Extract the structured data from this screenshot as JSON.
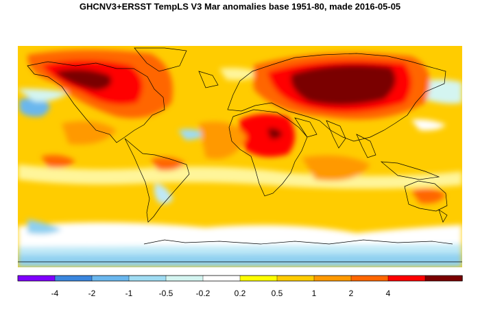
{
  "title": "GHCNV3+ERSST TempLS V3 Mar anomalies base 1951-80, made 2016-05-05",
  "legend": {
    "bins": [
      {
        "color": "#7f00ff"
      },
      {
        "color": "#3a86de"
      },
      {
        "color": "#6ab7ee"
      },
      {
        "color": "#9fdcf3"
      },
      {
        "color": "#d4f5f1"
      },
      {
        "color": "#ffffff"
      },
      {
        "color": "#ffff00"
      },
      {
        "color": "#ffcc00"
      },
      {
        "color": "#ff9900"
      },
      {
        "color": "#ff6600"
      },
      {
        "color": "#ff0000"
      },
      {
        "color": "#7a0000"
      }
    ],
    "tick_labels": [
      "-4",
      "-2",
      "-1",
      "-0.5",
      "-0.2",
      "0.2",
      "0.5",
      "1",
      "2",
      "4"
    ]
  },
  "colors": {
    "background_anomaly": "#ffcc00",
    "coastline": "#000000"
  }
}
